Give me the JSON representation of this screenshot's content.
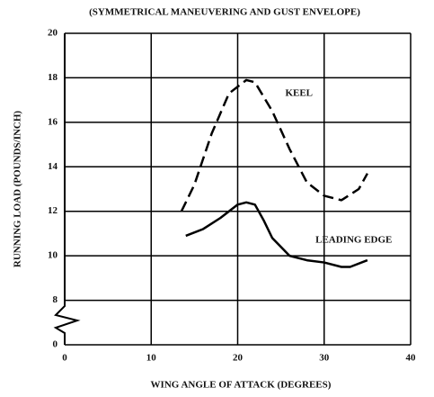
{
  "chart_data": {
    "type": "line",
    "title": "(SYMMETRICAL MANEUVERING AND GUST ENVELOPE)",
    "x_label": "WING ANGLE OF ATTACK (DEGREES)",
    "y_label": "RUNNING LOAD (POUNDS/INCH)",
    "xlim": [
      0,
      40
    ],
    "xticks": [
      0,
      10,
      20,
      30,
      40
    ],
    "ylim": [
      0,
      20
    ],
    "yticks": [
      0,
      8,
      10,
      12,
      14,
      16,
      18,
      20
    ],
    "y_break": [
      0,
      8
    ],
    "grid": true,
    "series": [
      {
        "name": "KEEL",
        "color": "#000000",
        "dash": true,
        "x": [
          13.5,
          15,
          17,
          19,
          21,
          22,
          24,
          26,
          28,
          30,
          32,
          34,
          35
        ],
        "values": [
          12,
          13.2,
          15.5,
          17.3,
          17.9,
          17.8,
          16.5,
          14.8,
          13.3,
          12.7,
          12.5,
          13,
          13.7
        ]
      },
      {
        "name": "LEADING EDGE",
        "color": "#000000",
        "dash": false,
        "x": [
          14,
          16,
          18,
          20,
          21,
          22,
          23,
          24,
          26,
          28,
          30,
          32,
          33,
          35
        ],
        "values": [
          10.9,
          11.2,
          11.7,
          12.3,
          12.4,
          12.3,
          11.6,
          10.8,
          10,
          9.8,
          9.7,
          9.5,
          9.5,
          9.8
        ]
      }
    ],
    "series_label_positions": [
      [
        25.5,
        17.3
      ],
      [
        29,
        10.7
      ]
    ]
  }
}
